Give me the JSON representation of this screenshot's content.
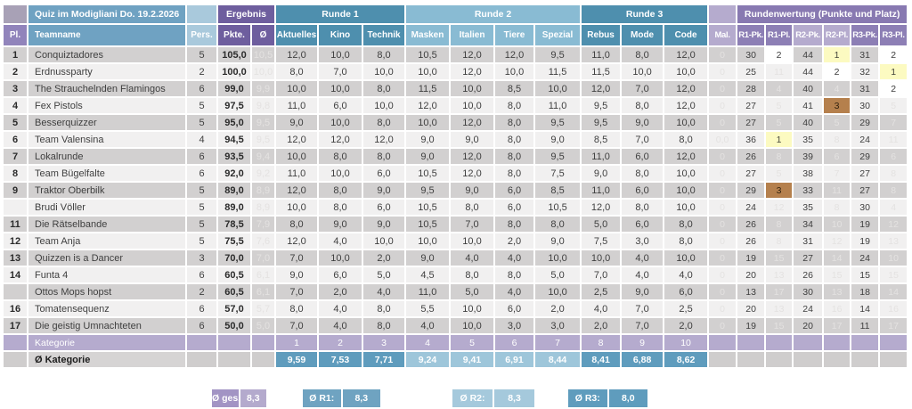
{
  "title": "Quiz im Modigliani Do. 19.2.2026",
  "header": {
    "group_labels": {
      "ergebnis": "Ergebnis",
      "runde1": "Runde 1",
      "runde2": "Runde 2",
      "runde3": "Runde 3",
      "rundenwertung": "Rundenwertung (Punkte und Platz)"
    },
    "columns": [
      "Pl.",
      "Teamname",
      "Pers.",
      "Pkte.",
      "Ø",
      "Aktuelles",
      "Kino",
      "Technik",
      "Masken",
      "Italien",
      "Tiere",
      "Spezial",
      "Rebus",
      "Mode",
      "Code",
      "Mal.",
      "R1-Pk.",
      "R1-Pl.",
      "R2-Pk.",
      "R2-Pl.",
      "R3-Pk.",
      "R3-Pl."
    ]
  },
  "rows": [
    {
      "pl": "1",
      "team": "Conquiztadores",
      "pers": "5",
      "pkte": "105,0",
      "avg": "10,5",
      "scores": [
        "12,0",
        "10,0",
        "8,0",
        "10,5",
        "12,0",
        "12,0",
        "9,5",
        "11,0",
        "8,0",
        "12,0"
      ],
      "mal": "0",
      "wertung": [
        {
          "v": "30"
        },
        {
          "v": "2",
          "m": "silver"
        },
        {
          "v": "44"
        },
        {
          "v": "1",
          "m": "gold"
        },
        {
          "v": "31"
        },
        {
          "v": "2",
          "m": "silver"
        }
      ]
    },
    {
      "pl": "2",
      "team": "Erdnussparty",
      "pers": "2",
      "pkte": "100,0",
      "avg": "10,0",
      "scores": [
        "8,0",
        "7,0",
        "10,0",
        "10,0",
        "12,0",
        "10,0",
        "11,5",
        "11,5",
        "10,0",
        "10,0"
      ],
      "mal": "0",
      "wertung": [
        {
          "v": "25"
        },
        {
          "v": "11"
        },
        {
          "v": "44"
        },
        {
          "v": "2",
          "m": "silver"
        },
        {
          "v": "32"
        },
        {
          "v": "1",
          "m": "gold"
        }
      ]
    },
    {
      "pl": "3",
      "team": "The Strauchelnden Flamingos",
      "pers": "6",
      "pkte": "99,0",
      "avg": "9,9",
      "scores": [
        "10,0",
        "10,0",
        "8,0",
        "11,5",
        "10,0",
        "8,5",
        "10,0",
        "12,0",
        "7,0",
        "12,0"
      ],
      "mal": "0",
      "wertung": [
        {
          "v": "28"
        },
        {
          "v": "4"
        },
        {
          "v": "40"
        },
        {
          "v": "4"
        },
        {
          "v": "31"
        },
        {
          "v": "2",
          "m": "silver"
        }
      ]
    },
    {
      "pl": "4",
      "team": "Fex Pistols",
      "pers": "5",
      "pkte": "97,5",
      "avg": "9,8",
      "scores": [
        "11,0",
        "6,0",
        "10,0",
        "12,0",
        "10,0",
        "8,0",
        "11,0",
        "9,5",
        "8,0",
        "12,0"
      ],
      "mal": "0",
      "wertung": [
        {
          "v": "27"
        },
        {
          "v": "5"
        },
        {
          "v": "41"
        },
        {
          "v": "3",
          "m": "bronze"
        },
        {
          "v": "30"
        },
        {
          "v": "5"
        }
      ]
    },
    {
      "pl": "5",
      "team": "Besserquizzer",
      "pers": "5",
      "pkte": "95,0",
      "avg": "9,5",
      "scores": [
        "9,0",
        "10,0",
        "8,0",
        "10,0",
        "12,0",
        "8,0",
        "9,5",
        "9,5",
        "9,0",
        "10,0"
      ],
      "mal": "0",
      "wertung": [
        {
          "v": "27"
        },
        {
          "v": "5"
        },
        {
          "v": "40"
        },
        {
          "v": "5"
        },
        {
          "v": "29"
        },
        {
          "v": "7"
        }
      ]
    },
    {
      "pl": "6",
      "team": "Team Valensina",
      "pers": "4",
      "pkte": "94,5",
      "avg": "9,5",
      "scores": [
        "12,0",
        "12,0",
        "12,0",
        "9,0",
        "9,0",
        "8,0",
        "9,0",
        "8,5",
        "7,0",
        "8,0"
      ],
      "mal": "0,0",
      "wertung": [
        {
          "v": "36"
        },
        {
          "v": "1",
          "m": "gold"
        },
        {
          "v": "35"
        },
        {
          "v": "8"
        },
        {
          "v": "24"
        },
        {
          "v": "11"
        }
      ]
    },
    {
      "pl": "7",
      "team": "Lokalrunde",
      "pers": "6",
      "pkte": "93,5",
      "avg": "9,4",
      "scores": [
        "10,0",
        "8,0",
        "8,0",
        "9,0",
        "12,0",
        "8,0",
        "9,5",
        "11,0",
        "6,0",
        "12,0"
      ],
      "mal": "0",
      "wertung": [
        {
          "v": "26"
        },
        {
          "v": "8"
        },
        {
          "v": "39"
        },
        {
          "v": "6"
        },
        {
          "v": "29"
        },
        {
          "v": "6"
        }
      ]
    },
    {
      "pl": "8",
      "team": "Team Bügelfalte",
      "pers": "6",
      "pkte": "92,0",
      "avg": "9,2",
      "scores": [
        "11,0",
        "10,0",
        "6,0",
        "10,5",
        "12,0",
        "8,0",
        "7,5",
        "9,0",
        "8,0",
        "10,0"
      ],
      "mal": "0",
      "wertung": [
        {
          "v": "27"
        },
        {
          "v": "5"
        },
        {
          "v": "38"
        },
        {
          "v": "7"
        },
        {
          "v": "27"
        },
        {
          "v": "8"
        }
      ]
    },
    {
      "pl": "9",
      "team": "Traktor Oberbilk",
      "pers": "5",
      "pkte": "89,0",
      "avg": "8,9",
      "scores": [
        "12,0",
        "8,0",
        "9,0",
        "9,5",
        "9,0",
        "6,0",
        "8,5",
        "11,0",
        "6,0",
        "10,0"
      ],
      "mal": "0",
      "wertung": [
        {
          "v": "29"
        },
        {
          "v": "3",
          "m": "bronze"
        },
        {
          "v": "33"
        },
        {
          "v": "11"
        },
        {
          "v": "27"
        },
        {
          "v": "8"
        }
      ]
    },
    {
      "pl": "",
      "team": "Brudi Völler",
      "pers": "5",
      "pkte": "89,0",
      "avg": "8,9",
      "scores": [
        "10,0",
        "8,0",
        "6,0",
        "10,5",
        "8,0",
        "6,0",
        "10,5",
        "12,0",
        "8,0",
        "10,0"
      ],
      "mal": "0",
      "wertung": [
        {
          "v": "24"
        },
        {
          "v": "12"
        },
        {
          "v": "35"
        },
        {
          "v": "8"
        },
        {
          "v": "30"
        },
        {
          "v": "4"
        }
      ]
    },
    {
      "pl": "11",
      "team": "Die Rätselbande",
      "pers": "5",
      "pkte": "78,5",
      "avg": "7,9",
      "scores": [
        "8,0",
        "9,0",
        "9,0",
        "10,5",
        "7,0",
        "8,0",
        "8,0",
        "5,0",
        "6,0",
        "8,0"
      ],
      "mal": "0",
      "wertung": [
        {
          "v": "26"
        },
        {
          "v": "8"
        },
        {
          "v": "34"
        },
        {
          "v": "10"
        },
        {
          "v": "19"
        },
        {
          "v": "12"
        }
      ]
    },
    {
      "pl": "12",
      "team": "Team Anja",
      "pers": "5",
      "pkte": "75,5",
      "avg": "7,6",
      "scores": [
        "12,0",
        "4,0",
        "10,0",
        "10,0",
        "10,0",
        "2,0",
        "9,0",
        "7,5",
        "3,0",
        "8,0"
      ],
      "mal": "0",
      "wertung": [
        {
          "v": "26"
        },
        {
          "v": "8"
        },
        {
          "v": "31"
        },
        {
          "v": "12"
        },
        {
          "v": "19"
        },
        {
          "v": "13"
        }
      ]
    },
    {
      "pl": "13",
      "team": "Quizzen is a Dancer",
      "pers": "3",
      "pkte": "70,0",
      "avg": "7,0",
      "scores": [
        "7,0",
        "10,0",
        "2,0",
        "9,0",
        "4,0",
        "4,0",
        "10,0",
        "10,0",
        "4,0",
        "10,0"
      ],
      "mal": "0",
      "wertung": [
        {
          "v": "19"
        },
        {
          "v": "15"
        },
        {
          "v": "27"
        },
        {
          "v": "14"
        },
        {
          "v": "24"
        },
        {
          "v": "10"
        }
      ]
    },
    {
      "pl": "14",
      "team": "Funta 4",
      "pers": "6",
      "pkte": "60,5",
      "avg": "6,1",
      "scores": [
        "9,0",
        "6,0",
        "5,0",
        "4,5",
        "8,0",
        "8,0",
        "5,0",
        "7,0",
        "4,0",
        "4,0"
      ],
      "mal": "0",
      "wertung": [
        {
          "v": "20"
        },
        {
          "v": "13"
        },
        {
          "v": "26"
        },
        {
          "v": "15"
        },
        {
          "v": "15"
        },
        {
          "v": "15"
        }
      ]
    },
    {
      "pl": "",
      "team": "Ottos Mops hopst",
      "pers": "2",
      "pkte": "60,5",
      "avg": "6,1",
      "scores": [
        "7,0",
        "2,0",
        "4,0",
        "11,0",
        "5,0",
        "4,0",
        "10,0",
        "2,5",
        "9,0",
        "6,0"
      ],
      "mal": "0",
      "wertung": [
        {
          "v": "13"
        },
        {
          "v": "17"
        },
        {
          "v": "30"
        },
        {
          "v": "13"
        },
        {
          "v": "18"
        },
        {
          "v": "14"
        }
      ]
    },
    {
      "pl": "16",
      "team": "Tomatensequenz",
      "pers": "6",
      "pkte": "57,0",
      "avg": "5,7",
      "scores": [
        "8,0",
        "4,0",
        "8,0",
        "5,5",
        "10,0",
        "6,0",
        "2,0",
        "4,0",
        "7,0",
        "2,5"
      ],
      "mal": "0",
      "wertung": [
        {
          "v": "20"
        },
        {
          "v": "13"
        },
        {
          "v": "24"
        },
        {
          "v": "16"
        },
        {
          "v": "14"
        },
        {
          "v": "16"
        }
      ]
    },
    {
      "pl": "17",
      "team": "Die geistig Umnachteten",
      "pers": "6",
      "pkte": "50,0",
      "avg": "5,0",
      "scores": [
        "7,0",
        "4,0",
        "8,0",
        "4,0",
        "10,0",
        "3,0",
        "3,0",
        "2,0",
        "7,0",
        "2,0"
      ],
      "mal": "0",
      "wertung": [
        {
          "v": "19"
        },
        {
          "v": "15"
        },
        {
          "v": "20"
        },
        {
          "v": "17"
        },
        {
          "v": "11"
        },
        {
          "v": "17"
        }
      ]
    }
  ],
  "kategorie_row": {
    "label": "Kategorie",
    "numbers": [
      "1",
      "2",
      "3",
      "4",
      "5",
      "6",
      "7",
      "8",
      "9",
      "10"
    ]
  },
  "avg_row": {
    "label": "Ø Kategorie",
    "values": [
      "9,59",
      "7,53",
      "7,71",
      "9,24",
      "9,41",
      "6,91",
      "8,44",
      "8,41",
      "6,88",
      "8,62"
    ]
  },
  "summary": [
    {
      "label": "Ø ges.",
      "value": "8,3"
    },
    {
      "label": "Ø R1:",
      "value": "8,3"
    },
    {
      "label": "Ø R2:",
      "value": "8,3"
    },
    {
      "label": "Ø R3:",
      "value": "8,0"
    }
  ],
  "colors": {
    "round1_header": "#4e8fae",
    "round2_header": "#89bbd3",
    "ergebnis_header": "#6e5e9e",
    "rundenwertung_header": "#8879b1",
    "lavender": "#b5abce",
    "teamname_header": "#6fa2c2",
    "gold_first": "#fcfac1",
    "silver_second": "#ffffff",
    "bronze_third": "#b5804d",
    "row_dark": "#d2d0d0",
    "row_light": "#f1f0f0"
  }
}
